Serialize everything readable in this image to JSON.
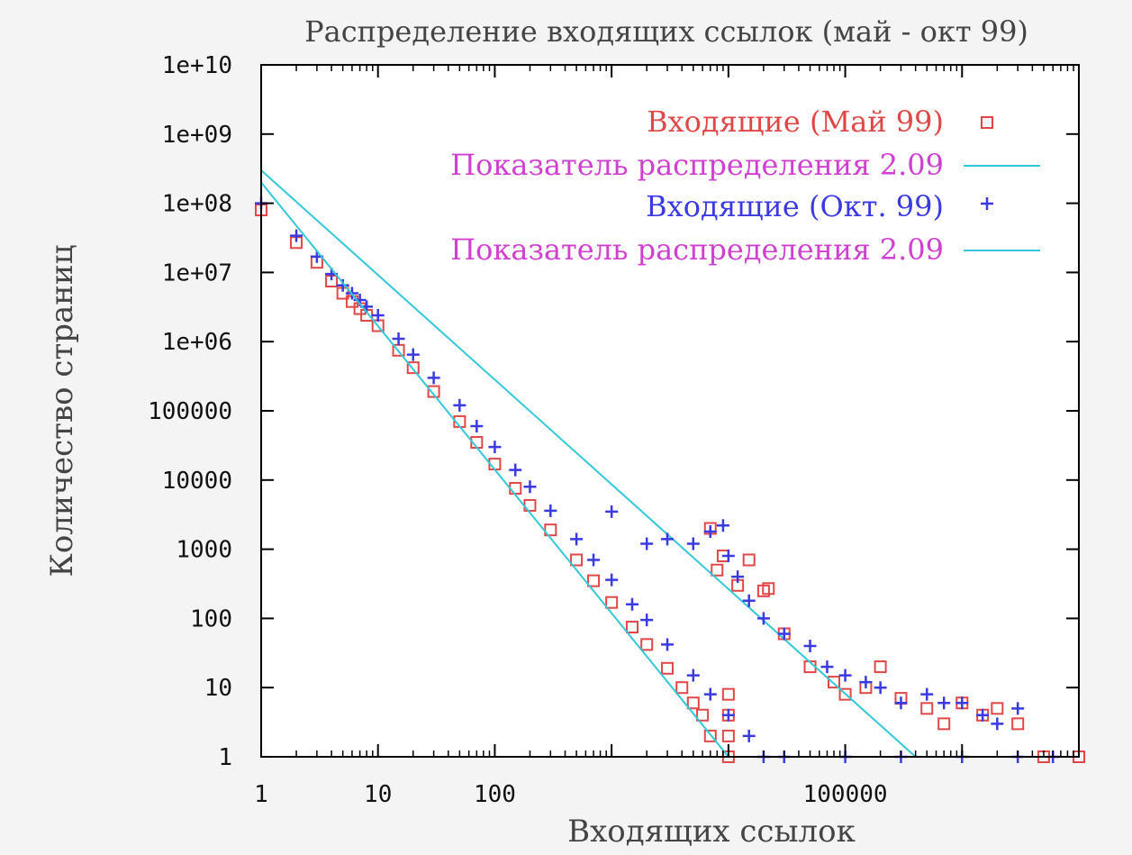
{
  "chart_data": {
    "type": "scatter",
    "title": "Распределение входящих ссылок (май - окт 99)",
    "xlabel": "Входящих ссылок",
    "ylabel": "Количество страниц",
    "x_scale": "log",
    "y_scale": "log",
    "xlim": [
      1,
      10000000
    ],
    "ylim": [
      1,
      10000000000
    ],
    "x_ticks": [
      {
        "value": 1,
        "label": "1"
      },
      {
        "value": 10,
        "label": "10"
      },
      {
        "value": 100,
        "label": "100"
      },
      {
        "value": 100000,
        "label": "100000"
      }
    ],
    "y_ticks": [
      {
        "value": 1,
        "label": "1"
      },
      {
        "value": 10,
        "label": "10"
      },
      {
        "value": 100,
        "label": "100"
      },
      {
        "value": 1000,
        "label": "1000"
      },
      {
        "value": 10000,
        "label": "10000"
      },
      {
        "value": 100000,
        "label": "100000"
      },
      {
        "value": 1000000,
        "label": "1e+06"
      },
      {
        "value": 10000000,
        "label": "1e+07"
      },
      {
        "value": 100000000,
        "label": "1e+08"
      },
      {
        "value": 1000000000,
        "label": "1e+09"
      },
      {
        "value": 10000000000,
        "label": "1e+10"
      }
    ],
    "legend_position": "top-right",
    "grid": false,
    "series": [
      {
        "name": "Входящие (Май 99)",
        "kind": "points",
        "marker": "square",
        "color": "#e04848",
        "label_color": "#e04848",
        "points": [
          [
            1,
            80000000
          ],
          [
            2,
            27000000
          ],
          [
            3,
            14000000
          ],
          [
            4,
            7500000
          ],
          [
            5,
            5000000
          ],
          [
            6,
            3800000
          ],
          [
            7,
            3000000
          ],
          [
            8,
            2400000
          ],
          [
            10,
            1700000
          ],
          [
            15,
            750000
          ],
          [
            20,
            420000
          ],
          [
            30,
            190000
          ],
          [
            50,
            70000
          ],
          [
            70,
            35000
          ],
          [
            100,
            17000
          ],
          [
            150,
            7600
          ],
          [
            200,
            4300
          ],
          [
            300,
            1900
          ],
          [
            500,
            700
          ],
          [
            700,
            350
          ],
          [
            1000,
            170
          ],
          [
            1500,
            75
          ],
          [
            2000,
            42
          ],
          [
            3000,
            19
          ],
          [
            4000,
            10
          ],
          [
            5000,
            6
          ],
          [
            6000,
            4
          ],
          [
            7000,
            2
          ],
          [
            10000,
            1
          ],
          [
            10000,
            2
          ],
          [
            10000,
            4
          ],
          [
            10000,
            8
          ],
          [
            7000,
            2000
          ],
          [
            8000,
            500
          ],
          [
            9000,
            800
          ],
          [
            12000,
            300
          ],
          [
            15000,
            700
          ],
          [
            20000,
            250
          ],
          [
            22000,
            270
          ],
          [
            30000,
            60
          ],
          [
            50000,
            20
          ],
          [
            80000,
            12
          ],
          [
            100000,
            8
          ],
          [
            150000,
            10
          ],
          [
            200000,
            20
          ],
          [
            300000,
            7
          ],
          [
            500000,
            5
          ],
          [
            700000,
            3
          ],
          [
            1000000,
            6
          ],
          [
            1500000,
            4
          ],
          [
            2000000,
            5
          ],
          [
            3000000,
            3
          ],
          [
            5000000,
            1
          ],
          [
            10000000,
            1
          ]
        ]
      },
      {
        "name": "Показатель распределения 2.09",
        "kind": "line",
        "color": "#33c8d8",
        "label_color": "#d040d0",
        "points": [
          [
            1,
            300000000
          ],
          [
            400000,
            1
          ]
        ]
      },
      {
        "name": "Входящие (Окт. 99)",
        "kind": "points",
        "marker": "plus",
        "color": "#3a3ae0",
        "label_color": "#3a3ae0",
        "points": [
          [
            1,
            100000000
          ],
          [
            2,
            34000000
          ],
          [
            3,
            17000000
          ],
          [
            4,
            9500000
          ],
          [
            5,
            6500000
          ],
          [
            6,
            5000000
          ],
          [
            7,
            4000000
          ],
          [
            8,
            3200000
          ],
          [
            10,
            2400000
          ],
          [
            15,
            1100000
          ],
          [
            20,
            650000
          ],
          [
            30,
            300000
          ],
          [
            50,
            120000
          ],
          [
            70,
            60000
          ],
          [
            100,
            30000
          ],
          [
            150,
            14000
          ],
          [
            200,
            8000
          ],
          [
            300,
            3600
          ],
          [
            500,
            1400
          ],
          [
            700,
            700
          ],
          [
            1000,
            360
          ],
          [
            1500,
            160
          ],
          [
            2000,
            95
          ],
          [
            3000,
            42
          ],
          [
            5000,
            15
          ],
          [
            7000,
            8
          ],
          [
            10000,
            4
          ],
          [
            15000,
            2
          ],
          [
            20000,
            1
          ],
          [
            1000,
            3500
          ],
          [
            2000,
            1200
          ],
          [
            3000,
            1400
          ],
          [
            5000,
            1200
          ],
          [
            7000,
            1800
          ],
          [
            9000,
            2200
          ],
          [
            10000,
            800
          ],
          [
            12000,
            400
          ],
          [
            15000,
            180
          ],
          [
            20000,
            100
          ],
          [
            30000,
            60
          ],
          [
            50000,
            40
          ],
          [
            70000,
            20
          ],
          [
            100000,
            15
          ],
          [
            150000,
            12
          ],
          [
            200000,
            10
          ],
          [
            300000,
            6
          ],
          [
            500000,
            8
          ],
          [
            700000,
            6
          ],
          [
            1000000,
            6
          ],
          [
            1500000,
            4
          ],
          [
            2000000,
            3
          ],
          [
            3000000,
            5
          ],
          [
            30000,
            1
          ],
          [
            100000,
            1
          ],
          [
            300000,
            1
          ],
          [
            1000000,
            1
          ],
          [
            3000000,
            1
          ],
          [
            6000000,
            1
          ]
        ]
      },
      {
        "name": "Показатель распределения 2.09",
        "kind": "line",
        "color": "#33c8d8",
        "label_color": "#d040d0",
        "points": [
          [
            1,
            200000000
          ],
          [
            10000,
            1
          ],
          [
            5000000,
            1
          ]
        ]
      }
    ]
  }
}
